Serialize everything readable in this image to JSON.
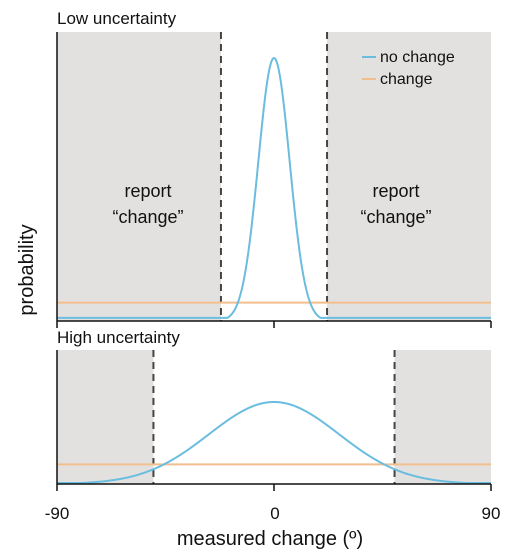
{
  "chart_data": [
    {
      "type": "line",
      "title": "Low uncertainty",
      "xlim": [
        -90,
        90
      ],
      "xlabel": "measured change (º)",
      "ylabel": "probability",
      "decision_boundaries": [
        -22,
        22
      ],
      "region_label": [
        "report",
        "“change”"
      ],
      "legend": {
        "position": "top-right",
        "entries": [
          "no change",
          "change"
        ]
      },
      "colors": {
        "no_change": "#6bbde0",
        "change": "#f3be8e",
        "shade": "#e3e1df",
        "boundary": "#444444"
      },
      "series": [
        {
          "name": "no change",
          "distribution": "gaussian",
          "mean": 0,
          "sd": 6.5,
          "peak": 1.0
        },
        {
          "name": "change",
          "distribution": "uniform",
          "level": 0.07
        }
      ]
    },
    {
      "type": "line",
      "title": "High uncertainty",
      "xlim": [
        -90,
        90
      ],
      "decision_boundaries": [
        -50,
        50
      ],
      "series": [
        {
          "name": "no change",
          "distribution": "gaussian",
          "mean": 0,
          "sd": 27,
          "peak": 1.0
        },
        {
          "name": "change",
          "distribution": "uniform",
          "level": 0.24
        }
      ]
    }
  ],
  "x_ticks": [
    "-90",
    "0",
    "90"
  ]
}
